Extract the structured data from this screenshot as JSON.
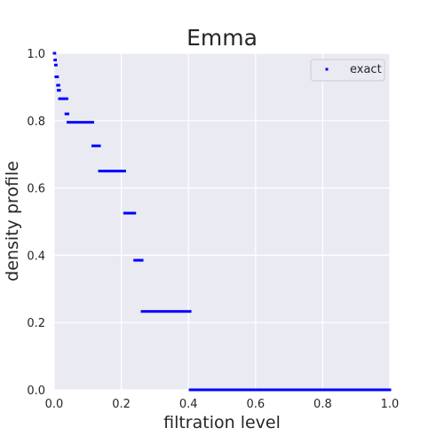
{
  "chart_data": {
    "type": "scatter",
    "title": "Emma",
    "xlabel": "filtration level",
    "ylabel": "density profile",
    "xlim": [
      0,
      1
    ],
    "ylim": [
      0,
      1
    ],
    "xticks": [
      "0.0",
      "0.2",
      "0.4",
      "0.6",
      "0.8",
      "1.0"
    ],
    "yticks": [
      "0.0",
      "0.2",
      "0.4",
      "0.6",
      "0.8",
      "1.0"
    ],
    "grid": true,
    "legend_position": "top-right",
    "series": [
      {
        "name": "exact",
        "color": "#0000ff",
        "marker": "square",
        "segments": [
          {
            "x0": 0.0,
            "x1": 0.002,
            "y": 1.0
          },
          {
            "x0": 0.002,
            "x1": 0.004,
            "y": 0.98
          },
          {
            "x0": 0.004,
            "x1": 0.006,
            "y": 0.965
          },
          {
            "x0": 0.005,
            "x1": 0.01,
            "y": 0.93
          },
          {
            "x0": 0.01,
            "x1": 0.014,
            "y": 0.905
          },
          {
            "x0": 0.012,
            "x1": 0.016,
            "y": 0.89
          },
          {
            "x0": 0.016,
            "x1": 0.038,
            "y": 0.865
          },
          {
            "x0": 0.035,
            "x1": 0.041,
            "y": 0.82
          },
          {
            "x0": 0.041,
            "x1": 0.115,
            "y": 0.795
          },
          {
            "x0": 0.115,
            "x1": 0.135,
            "y": 0.725
          },
          {
            "x0": 0.135,
            "x1": 0.21,
            "y": 0.65
          },
          {
            "x0": 0.21,
            "x1": 0.24,
            "y": 0.525
          },
          {
            "x0": 0.24,
            "x1": 0.262,
            "y": 0.385
          },
          {
            "x0": 0.262,
            "x1": 0.405,
            "y": 0.233
          },
          {
            "x0": 0.405,
            "x1": 1.0,
            "y": 0.0
          }
        ]
      }
    ]
  }
}
